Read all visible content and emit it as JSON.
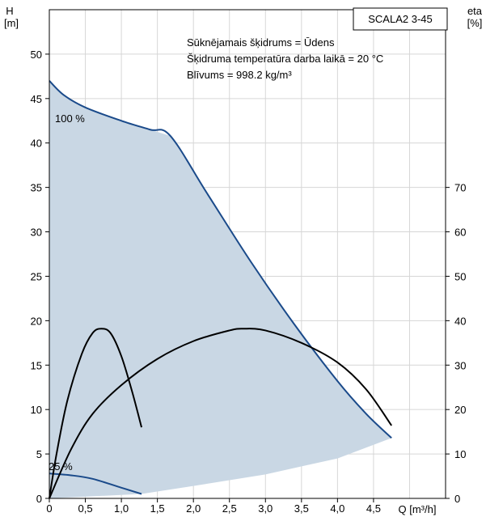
{
  "chart_data": {
    "type": "line",
    "title": "SCALA2 3-45",
    "xlabel": "Q [m³/h]",
    "ylabel_left": {
      "symbol": "H",
      "unit": "[m]"
    },
    "ylabel_right": {
      "symbol": "eta",
      "unit": "[%]"
    },
    "notes": [
      "Sūknējamais šķidrums = Ūdens",
      "Šķidruma temperatūra darba laikā = 20 °C",
      "Blīvums = 998.2 kg/m³"
    ],
    "xlim": [
      0,
      5.5
    ],
    "ylim_left": [
      0,
      55
    ],
    "ylim_right": [
      0,
      110
    ],
    "x_ticks": [
      0,
      0.5,
      1.0,
      1.5,
      2.0,
      2.5,
      3.0,
      3.5,
      4.0,
      4.5
    ],
    "x_tick_labels": [
      "0",
      "0,5",
      "1,0",
      "1,5",
      "2,0",
      "2,5",
      "3,0",
      "3,5",
      "4,0",
      "4,5"
    ],
    "y_left_ticks": [
      0,
      5,
      10,
      15,
      20,
      25,
      30,
      35,
      40,
      45,
      50
    ],
    "y_right_ticks": [
      0,
      10,
      20,
      30,
      40,
      50,
      60,
      70
    ],
    "grid": true,
    "envelope": {
      "fill": "#c9d7e4",
      "max_curve": {
        "name": "100 %",
        "points": [
          [
            0,
            47
          ],
          [
            0.2,
            45.4
          ],
          [
            0.5,
            44.0
          ],
          [
            1.0,
            42.5
          ],
          [
            1.4,
            41.5
          ],
          [
            1.68,
            40.8
          ],
          [
            2.2,
            34.2
          ],
          [
            2.8,
            26.6
          ],
          [
            3.4,
            19.6
          ],
          [
            4.0,
            13.2
          ],
          [
            4.4,
            9.5
          ],
          [
            4.75,
            6.8
          ]
        ],
        "color": "#1a4a8a"
      },
      "min_curve": {
        "name": "25 %",
        "points": [
          [
            0,
            2.8
          ],
          [
            0.3,
            2.6
          ],
          [
            0.6,
            2.2
          ],
          [
            1.0,
            1.2
          ],
          [
            1.28,
            0.5
          ]
        ],
        "color": "#1a4a8a"
      },
      "lower_boundary": [
        [
          0,
          0
        ],
        [
          1.28,
          0.5
        ],
        [
          2.0,
          1.4
        ],
        [
          3.0,
          2.7
        ],
        [
          4.0,
          4.5
        ],
        [
          4.75,
          6.8
        ]
      ]
    },
    "series": [
      {
        "name": "eta 100 %",
        "axis": "right",
        "color": "#000000",
        "points": [
          [
            0,
            0
          ],
          [
            0.3,
            11
          ],
          [
            0.6,
            19
          ],
          [
            1.0,
            25.5
          ],
          [
            1.5,
            31.4
          ],
          [
            2.0,
            35.4
          ],
          [
            2.5,
            37.8
          ],
          [
            2.7,
            38.2
          ],
          [
            3.0,
            37.8
          ],
          [
            3.5,
            35.0
          ],
          [
            4.0,
            30.6
          ],
          [
            4.4,
            24.5
          ],
          [
            4.75,
            16.4
          ]
        ]
      },
      {
        "name": "eta 25 %",
        "axis": "right",
        "color": "#000000",
        "points": [
          [
            0,
            0
          ],
          [
            0.1,
            10
          ],
          [
            0.25,
            22
          ],
          [
            0.45,
            32.5
          ],
          [
            0.6,
            37.2
          ],
          [
            0.72,
            38.2
          ],
          [
            0.85,
            37.2
          ],
          [
            1.0,
            32.0
          ],
          [
            1.15,
            24.0
          ],
          [
            1.28,
            16.0
          ]
        ]
      }
    ]
  }
}
